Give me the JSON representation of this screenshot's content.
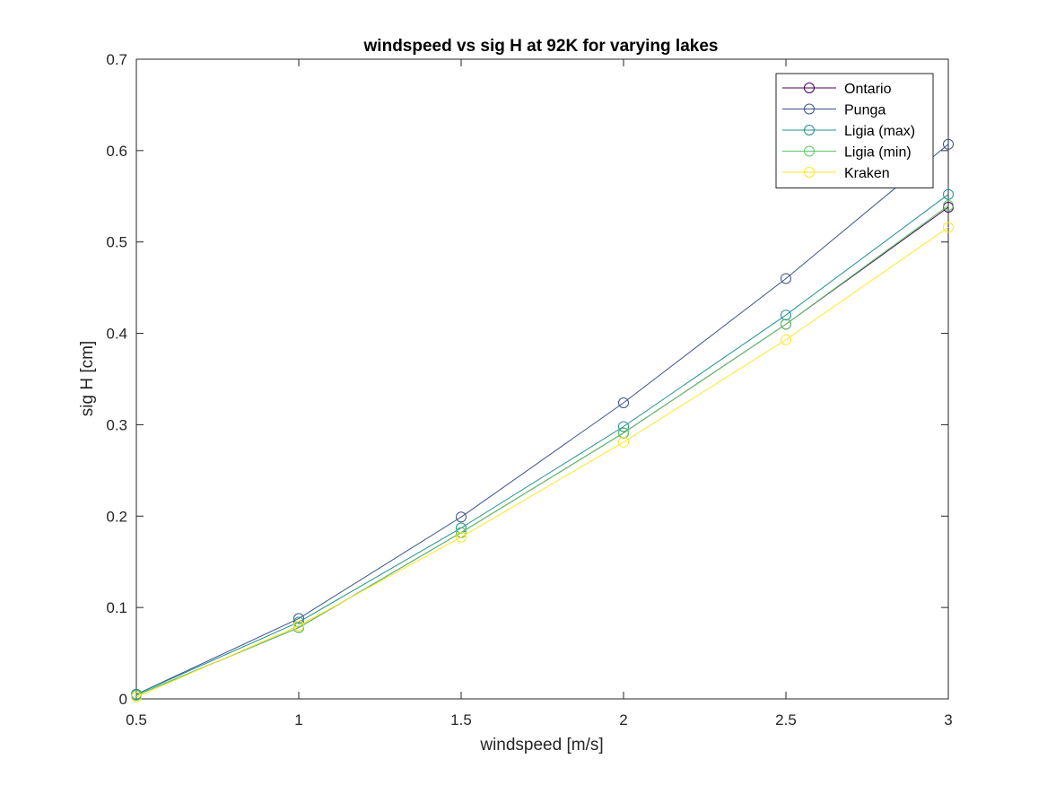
{
  "chart_data": {
    "type": "line",
    "title": "windspeed vs sig H at 92K for varying lakes",
    "xlabel": "windspeed [m/s]",
    "ylabel": "sig H [cm]",
    "xlim": [
      0.5,
      3
    ],
    "ylim": [
      0,
      0.7
    ],
    "xticks": [
      0.5,
      1,
      1.5,
      2,
      2.5,
      3
    ],
    "xtick_labels": [
      "0.5",
      "1",
      "1.5",
      "2",
      "2.5",
      "3"
    ],
    "yticks": [
      0,
      0.1,
      0.2,
      0.3,
      0.4,
      0.5,
      0.6,
      0.7
    ],
    "ytick_labels": [
      "0",
      "0.1",
      "0.2",
      "0.3",
      "0.4",
      "0.5",
      "0.6",
      "0.7"
    ],
    "grid": false,
    "legend_position": "top-right",
    "marker": "open-circle",
    "x": [
      0.5,
      1,
      1.5,
      2,
      2.5,
      3
    ],
    "series": [
      {
        "name": "Ontario",
        "color": "#440154",
        "values": [
          0.004,
          0.078,
          0.182,
          0.291,
          0.41,
          0.538
        ]
      },
      {
        "name": "Punga",
        "color": "#3b528b",
        "values": [
          0.005,
          0.088,
          0.199,
          0.324,
          0.46,
          0.607
        ]
      },
      {
        "name": "Ligia (max)",
        "color": "#21908d",
        "values": [
          0.005,
          0.084,
          0.187,
          0.298,
          0.42,
          0.552
        ]
      },
      {
        "name": "Ligia (min)",
        "color": "#5dc963",
        "values": [
          0.004,
          0.078,
          0.182,
          0.291,
          0.41,
          0.54
        ]
      },
      {
        "name": "Kraken",
        "color": "#fde725",
        "values": [
          0.002,
          0.08,
          0.177,
          0.281,
          0.393,
          0.516
        ]
      }
    ]
  }
}
